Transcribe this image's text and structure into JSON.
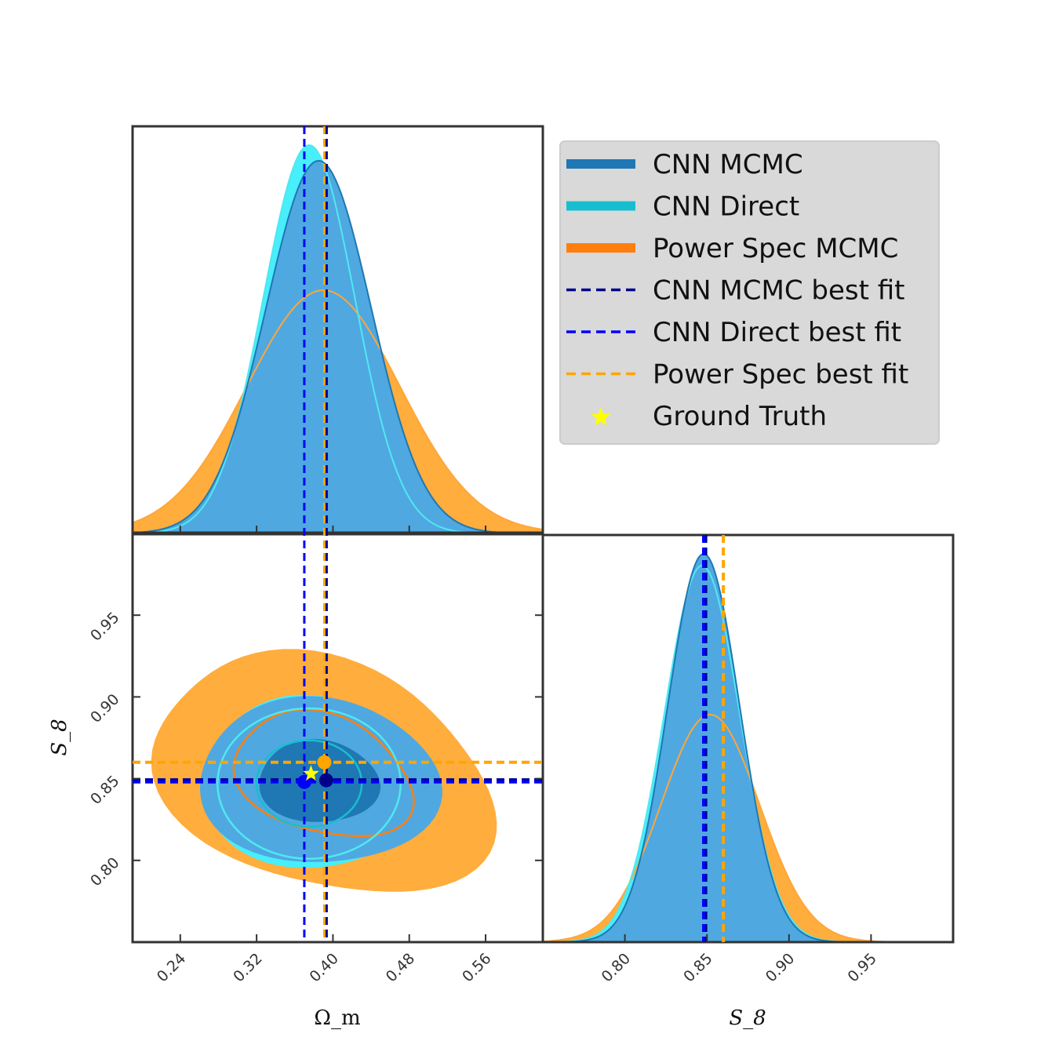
{
  "chart_data": {
    "type": "corner",
    "parameters": [
      "Ω_m",
      "S_8"
    ],
    "axis_labels": {
      "omega_m": "Ωm",
      "s8": "S8"
    },
    "ranges": {
      "omega_m": [
        0.19,
        0.62
      ],
      "s8": [
        0.75,
        1.0
      ]
    },
    "ticks": {
      "omega_m": [
        0.24,
        0.32,
        0.4,
        0.48,
        0.56
      ],
      "omega_m_labels": [
        "0.24",
        "0.32",
        "0.40",
        "0.48",
        "0.56"
      ],
      "s8": [
        0.8,
        0.85,
        0.9,
        0.95
      ],
      "s8_labels": [
        "0.80",
        "0.85",
        "0.90",
        "0.95"
      ]
    },
    "series": [
      {
        "name": "CNN MCMC",
        "color": "#1f77b4",
        "style": "filled",
        "omega_m_mean": 0.385,
        "omega_m_sigma": 0.055,
        "s8_mean": 0.848,
        "s8_sigma": 0.022
      },
      {
        "name": "CNN Direct",
        "color": "#17becf",
        "style": "filled",
        "omega_m_mean": 0.375,
        "omega_m_sigma": 0.048,
        "s8_mean": 0.847,
        "s8_sigma": 0.023
      },
      {
        "name": "Power Spec MCMC",
        "color": "#ff7f0e",
        "style": "filled",
        "omega_m_mean": 0.39,
        "omega_m_sigma": 0.08,
        "s8_mean": 0.852,
        "s8_sigma": 0.03
      }
    ],
    "best_fits": [
      {
        "name": "CNN MCMC best fit",
        "color": "#00008b",
        "omega_m": 0.393,
        "s8": 0.849
      },
      {
        "name": "CNN Direct best fit",
        "color": "#0000ff",
        "omega_m": 0.37,
        "s8": 0.848
      },
      {
        "name": "Power Spec best fit",
        "color": "#ffa500",
        "omega_m": 0.391,
        "s8": 0.86
      }
    ],
    "ground_truth": {
      "name": "Ground Truth",
      "color": "#ffff00",
      "omega_m": 0.377,
      "s8": 0.853
    },
    "legend": {
      "position": "top-right",
      "entries": [
        {
          "label": "CNN MCMC",
          "kind": "patch",
          "color": "#1f77b4"
        },
        {
          "label": "CNN Direct",
          "kind": "patch",
          "color": "#17becf"
        },
        {
          "label": "Power Spec MCMC",
          "kind": "patch",
          "color": "#ff7f0e"
        },
        {
          "label": "CNN MCMC best fit",
          "kind": "dashed",
          "color": "#00008b"
        },
        {
          "label": "CNN Direct best fit",
          "kind": "dashed",
          "color": "#0000ff"
        },
        {
          "label": "Power Spec best fit",
          "kind": "dashed",
          "color": "#ffa500"
        },
        {
          "label": "Ground Truth",
          "kind": "star",
          "color": "#ffff00"
        }
      ]
    }
  }
}
